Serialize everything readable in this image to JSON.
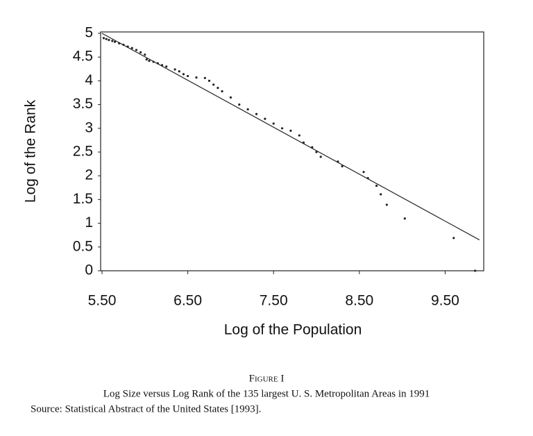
{
  "chart_data": {
    "type": "scatter",
    "x_label": "Log of the Population",
    "y_label": "Log of the Rank",
    "figure_label": "Figure I",
    "caption": [
      "Log Size versus Log Rank of the 135 largest U. S. Metropolitan Areas in 1991",
      "Source: Statistical Abstract of the United States [1993]."
    ],
    "xlim": [
      5.5,
      9.95
    ],
    "ylim": [
      0,
      5
    ],
    "xticks": [
      {
        "value": 5.5,
        "label": "5.50"
      },
      {
        "value": 6.5,
        "label": "6.50"
      },
      {
        "value": 7.5,
        "label": "7.50"
      },
      {
        "value": 8.5,
        "label": "8.50"
      },
      {
        "value": 9.5,
        "label": "9.50"
      }
    ],
    "yticks": [
      0,
      0.5,
      1,
      1.5,
      2,
      2.5,
      3,
      3.5,
      4,
      4.5,
      5
    ],
    "color": "#222222",
    "grid": false,
    "x": [
      5.52,
      5.55,
      5.58,
      5.62,
      5.65,
      5.7,
      5.75,
      5.8,
      5.85,
      5.9,
      5.95,
      6.0,
      6.02,
      6.05,
      6.1,
      6.15,
      6.2,
      6.25,
      6.35,
      6.4,
      6.45,
      6.5,
      6.6,
      6.7,
      6.75,
      6.8,
      6.85,
      6.9,
      7.0,
      7.1,
      7.2,
      7.3,
      7.4,
      7.5,
      7.6,
      7.7,
      7.8,
      7.85,
      7.95,
      8.0,
      8.05,
      8.25,
      8.3,
      8.55,
      8.6,
      8.7,
      8.75,
      8.82,
      9.03,
      9.6,
      9.85
    ],
    "values": [
      4.9,
      4.88,
      4.86,
      4.84,
      4.82,
      4.79,
      4.76,
      4.72,
      4.69,
      4.65,
      4.6,
      4.55,
      4.45,
      4.42,
      4.4,
      4.37,
      4.33,
      4.3,
      4.24,
      4.2,
      4.14,
      4.1,
      4.07,
      4.06,
      4.0,
      3.92,
      3.85,
      3.78,
      3.65,
      3.5,
      3.4,
      3.3,
      3.2,
      3.1,
      3.0,
      2.95,
      2.85,
      2.7,
      2.6,
      2.5,
      2.4,
      2.3,
      2.2,
      2.08,
      1.95,
      1.79,
      1.61,
      1.39,
      1.1,
      0.69,
      0
    ],
    "fit_line": {
      "x": [
        5.5,
        9.9
      ],
      "values": [
        5.0,
        0.65
      ]
    }
  }
}
